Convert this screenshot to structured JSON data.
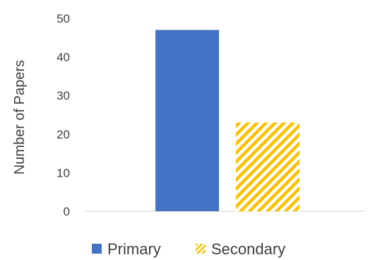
{
  "chart_data": {
    "type": "bar",
    "categories": [
      ""
    ],
    "series": [
      {
        "name": "Primary",
        "values": [
          47
        ],
        "color": "#4472C4",
        "fill": "solid"
      },
      {
        "name": "Secondary",
        "values": [
          23
        ],
        "color": "#FFC000",
        "fill": "diagonal-hatch"
      }
    ],
    "title": "",
    "xlabel": "",
    "ylabel": "Number of Papers",
    "ylim": [
      0,
      50
    ],
    "yticks": [
      0,
      10,
      20,
      30,
      40,
      50
    ],
    "grid": false,
    "legend": "bottom"
  }
}
